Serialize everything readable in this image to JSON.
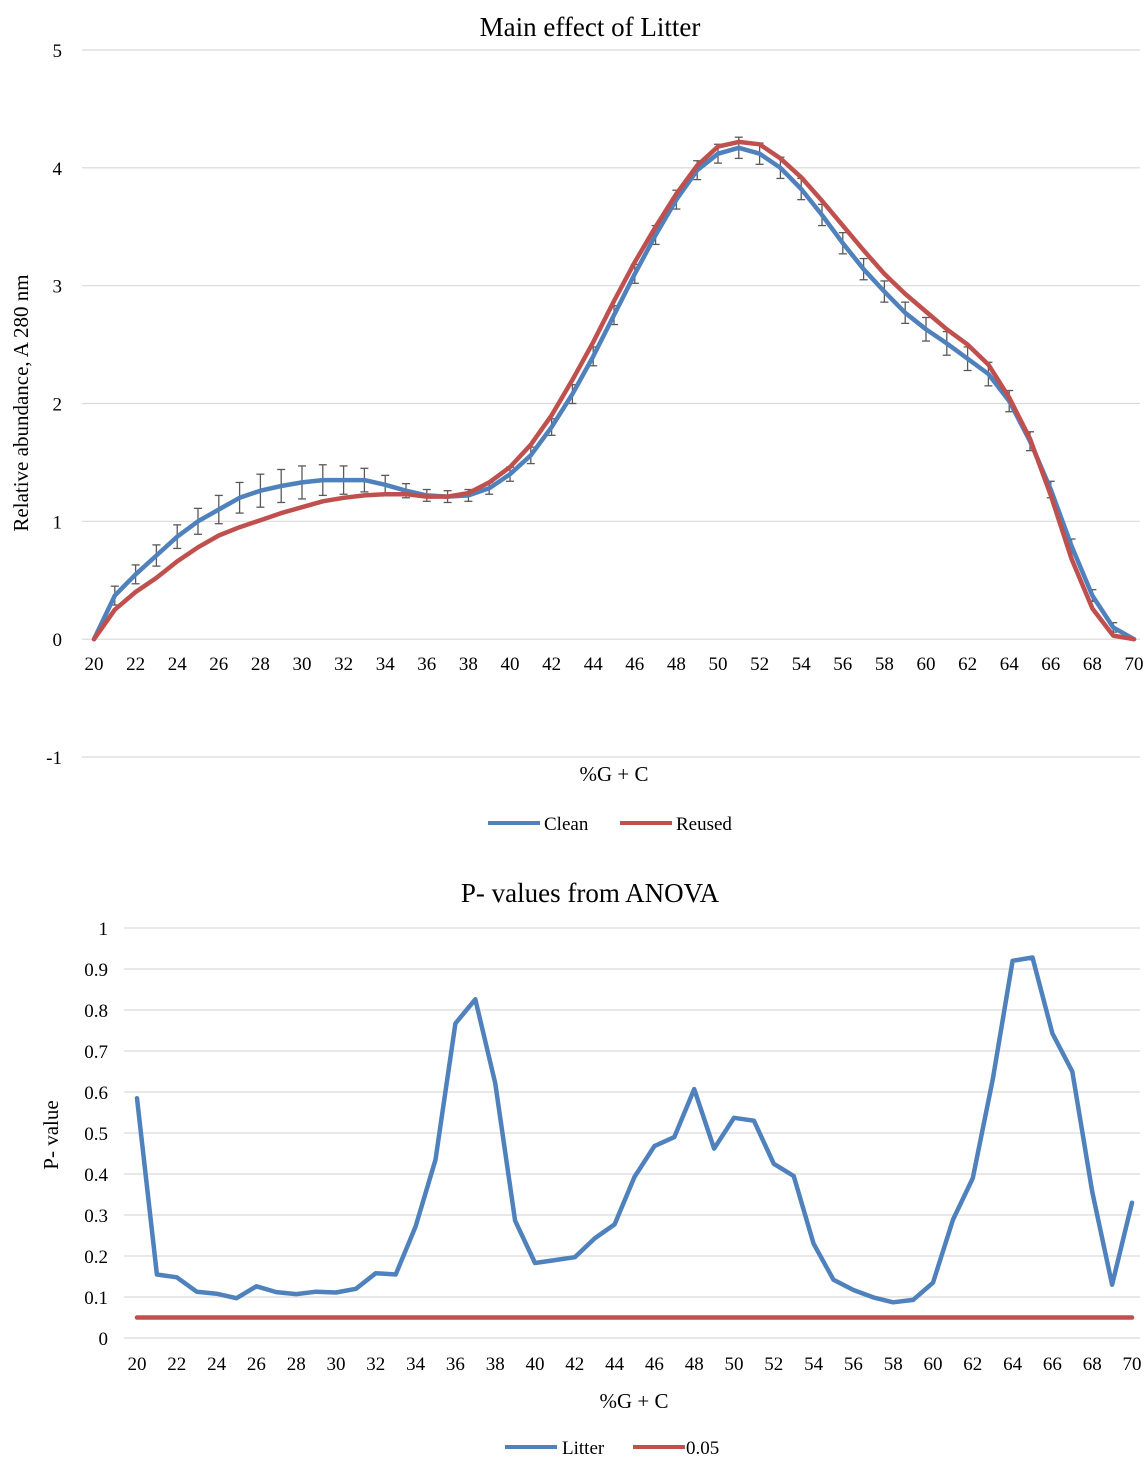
{
  "chart_data": [
    {
      "type": "line",
      "title": "Main effect of Litter",
      "xlabel": "%G + C",
      "ylabel": "Relative abundance, A 280 nm",
      "ylim": [
        -1,
        5
      ],
      "yticks": [
        -1,
        0,
        1,
        2,
        3,
        4,
        5
      ],
      "xticks": [
        20,
        22,
        24,
        26,
        28,
        30,
        32,
        34,
        36,
        38,
        40,
        42,
        44,
        46,
        48,
        50,
        52,
        54,
        56,
        58,
        60,
        62,
        64,
        66,
        68,
        70
      ],
      "grid": true,
      "legend": "bottom",
      "error_bars": true,
      "x": [
        20,
        21,
        22,
        23,
        24,
        25,
        26,
        27,
        28,
        29,
        30,
        31,
        32,
        33,
        34,
        35,
        36,
        37,
        38,
        39,
        40,
        41,
        42,
        43,
        44,
        45,
        46,
        47,
        48,
        49,
        50,
        51,
        52,
        53,
        54,
        55,
        56,
        57,
        58,
        59,
        60,
        61,
        62,
        63,
        64,
        65,
        66,
        67,
        68,
        69,
        70
      ],
      "series": [
        {
          "name": "Clean",
          "color": "#4F81BD",
          "values": [
            0,
            0.37,
            0.55,
            0.71,
            0.87,
            1.0,
            1.1,
            1.2,
            1.26,
            1.3,
            1.33,
            1.35,
            1.35,
            1.35,
            1.31,
            1.26,
            1.22,
            1.21,
            1.22,
            1.28,
            1.4,
            1.56,
            1.8,
            2.08,
            2.4,
            2.75,
            3.1,
            3.43,
            3.73,
            3.98,
            4.12,
            4.17,
            4.12,
            4.0,
            3.82,
            3.6,
            3.36,
            3.14,
            2.95,
            2.77,
            2.63,
            2.51,
            2.38,
            2.25,
            2.02,
            1.68,
            1.27,
            0.79,
            0.37,
            0.1,
            0.0
          ],
          "errors": [
            0,
            0.08,
            0.08,
            0.09,
            0.1,
            0.11,
            0.12,
            0.13,
            0.14,
            0.14,
            0.14,
            0.13,
            0.12,
            0.1,
            0.08,
            0.06,
            0.05,
            0.05,
            0.05,
            0.05,
            0.06,
            0.07,
            0.07,
            0.08,
            0.08,
            0.08,
            0.08,
            0.08,
            0.08,
            0.08,
            0.08,
            0.09,
            0.09,
            0.09,
            0.09,
            0.09,
            0.09,
            0.09,
            0.09,
            0.09,
            0.1,
            0.1,
            0.1,
            0.1,
            0.09,
            0.08,
            0.07,
            0.06,
            0.05,
            0.04,
            0
          ]
        },
        {
          "name": "Reused",
          "color": "#C0504D",
          "values": [
            0,
            0.25,
            0.4,
            0.52,
            0.66,
            0.78,
            0.88,
            0.95,
            1.01,
            1.07,
            1.12,
            1.17,
            1.2,
            1.22,
            1.23,
            1.23,
            1.21,
            1.21,
            1.24,
            1.33,
            1.46,
            1.65,
            1.9,
            2.2,
            2.52,
            2.87,
            3.2,
            3.5,
            3.78,
            4.02,
            4.18,
            4.22,
            4.2,
            4.08,
            3.92,
            3.72,
            3.51,
            3.3,
            3.1,
            2.93,
            2.78,
            2.63,
            2.5,
            2.33,
            2.05,
            1.7,
            1.22,
            0.68,
            0.26,
            0.03,
            0.0
          ]
        }
      ]
    },
    {
      "type": "line",
      "title": "P- values from ANOVA",
      "xlabel": "%G + C",
      "ylabel": "P- value",
      "ylim": [
        0,
        1
      ],
      "yticks": [
        0,
        0.1,
        0.2,
        0.3,
        0.4,
        0.5,
        0.6,
        0.7,
        0.8,
        0.9,
        1
      ],
      "xticks": [
        20,
        22,
        24,
        26,
        28,
        30,
        32,
        34,
        36,
        38,
        40,
        42,
        44,
        46,
        48,
        50,
        52,
        54,
        56,
        58,
        60,
        62,
        64,
        66,
        68,
        70
      ],
      "grid": true,
      "legend": "bottom",
      "x": [
        20,
        21,
        22,
        23,
        24,
        25,
        26,
        27,
        28,
        29,
        30,
        31,
        32,
        33,
        34,
        35,
        36,
        37,
        38,
        39,
        40,
        41,
        42,
        43,
        44,
        45,
        46,
        47,
        48,
        49,
        50,
        51,
        52,
        53,
        54,
        55,
        56,
        57,
        58,
        59,
        60,
        61,
        62,
        63,
        64,
        65,
        66,
        67,
        68,
        69,
        70
      ],
      "series": [
        {
          "name": "Litter",
          "color": "#4F81BD",
          "values": [
            0.585,
            0.155,
            0.148,
            0.113,
            0.108,
            0.097,
            0.126,
            0.112,
            0.107,
            0.113,
            0.111,
            0.12,
            0.158,
            0.155,
            0.272,
            0.435,
            0.767,
            0.826,
            0.622,
            0.286,
            0.183,
            0.19,
            0.197,
            0.243,
            0.277,
            0.393,
            0.468,
            0.49,
            0.607,
            0.462,
            0.537,
            0.53,
            0.425,
            0.395,
            0.23,
            0.142,
            0.117,
            0.099,
            0.087,
            0.093,
            0.135,
            0.288,
            0.39,
            0.63,
            0.92,
            0.928,
            0.743,
            0.65,
            0.357,
            0.13,
            0.33
          ]
        },
        {
          "name": "0.05",
          "color": "#C0504D",
          "values": [
            0.05,
            0.05,
            0.05,
            0.05,
            0.05,
            0.05,
            0.05,
            0.05,
            0.05,
            0.05,
            0.05,
            0.05,
            0.05,
            0.05,
            0.05,
            0.05,
            0.05,
            0.05,
            0.05,
            0.05,
            0.05,
            0.05,
            0.05,
            0.05,
            0.05,
            0.05,
            0.05,
            0.05,
            0.05,
            0.05,
            0.05,
            0.05,
            0.05,
            0.05,
            0.05,
            0.05,
            0.05,
            0.05,
            0.05,
            0.05,
            0.05,
            0.05,
            0.05,
            0.05,
            0.05,
            0.05,
            0.05,
            0.05,
            0.05,
            0.05,
            0.05
          ]
        }
      ]
    }
  ]
}
